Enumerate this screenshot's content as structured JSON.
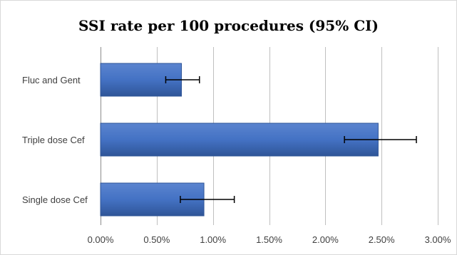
{
  "chart_data": {
    "type": "bar",
    "orientation": "horizontal",
    "title": "SSI rate per 100 procedures (95% CI)",
    "categories": [
      "Fluc and Gent",
      "Triple dose Cef",
      "Single dose Cef"
    ],
    "values": [
      0.72,
      2.47,
      0.92
    ],
    "error_low": [
      0.58,
      2.17,
      0.71
    ],
    "error_high": [
      0.88,
      2.81,
      1.19
    ],
    "xlim": [
      0,
      3
    ],
    "xticks": [
      0,
      0.5,
      1,
      1.5,
      2,
      2.5,
      3
    ],
    "xtick_labels": [
      "0.00%",
      "0.50%",
      "1.00%",
      "1.50%",
      "2.00%",
      "2.50%",
      "3.00%"
    ],
    "xlabel": "",
    "ylabel": "",
    "grid": "vertical",
    "legend": "none",
    "colors": {
      "bar": "#4472c4",
      "bar_dark": "#2f5597",
      "grid": "#bfbfbf",
      "error": "#000000"
    }
  }
}
